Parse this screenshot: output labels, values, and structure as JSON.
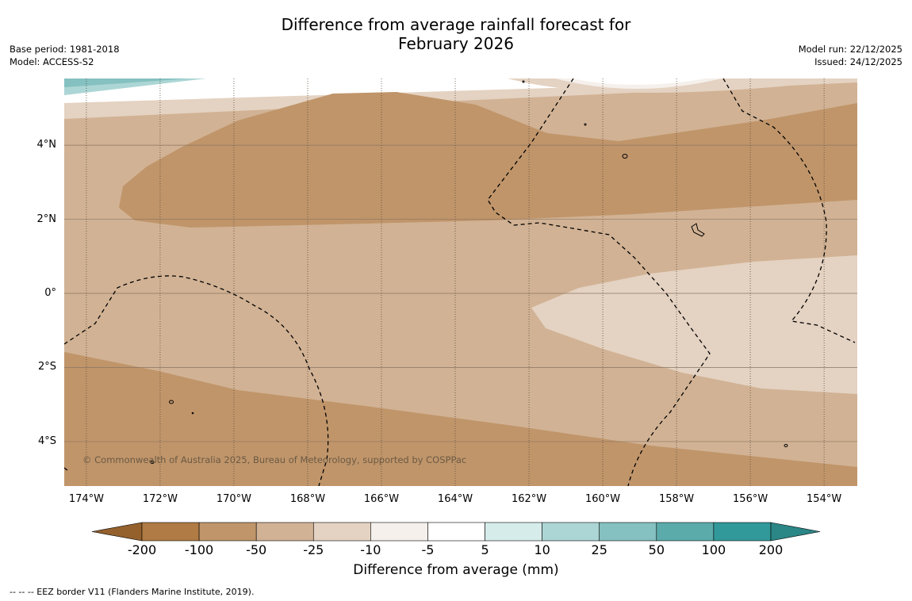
{
  "title": {
    "line1": "Difference from average rainfall forecast for",
    "line2": "February 2026"
  },
  "meta_left": {
    "base_period": "Base period: 1981-2018",
    "model": "Model: ACCESS-S2"
  },
  "meta_right": {
    "model_run": "Model run: 22/12/2025",
    "issued": "Issued: 24/12/2025"
  },
  "map": {
    "lat_labels": [
      "4°N",
      "2°N",
      "0°",
      "2°S",
      "4°S"
    ],
    "lat_values": [
      4,
      2,
      0,
      -2,
      -4
    ],
    "lon_labels": [
      "174°W",
      "172°W",
      "170°W",
      "168°W",
      "166°W",
      "164°W",
      "162°W",
      "160°W",
      "158°W",
      "156°W",
      "154°W"
    ],
    "lon_values": [
      -174,
      -172,
      -170,
      -168,
      -166,
      -164,
      -162,
      -160,
      -158,
      -156,
      -154
    ],
    "lat_range": [
      -5.2,
      5.8
    ],
    "lon_range": [
      -174.6,
      -153.1
    ],
    "copyright": "© Commonwealth of Australia 2025, Bureau of Meteorology, supported by COSPPac"
  },
  "colorbar": {
    "ticks": [
      "-200",
      "-100",
      "-50",
      "-25",
      "-10",
      "-5",
      "5",
      "10",
      "25",
      "50",
      "100",
      "200"
    ],
    "colors": [
      "#b07b44",
      "#c0956a",
      "#d1b294",
      "#e4d2c2",
      "#f5f0eb",
      "#ffffff",
      "#d6ecea",
      "#acd6d5",
      "#84c1c0",
      "#5cabab",
      "#319999"
    ],
    "extend_low_color": "#94602c",
    "extend_high_color": "#2b8686",
    "title": "Difference from average (mm)"
  },
  "footnote": "--  --  -- EEZ border V11 (Flanders Marine Institute, 2019)."
}
